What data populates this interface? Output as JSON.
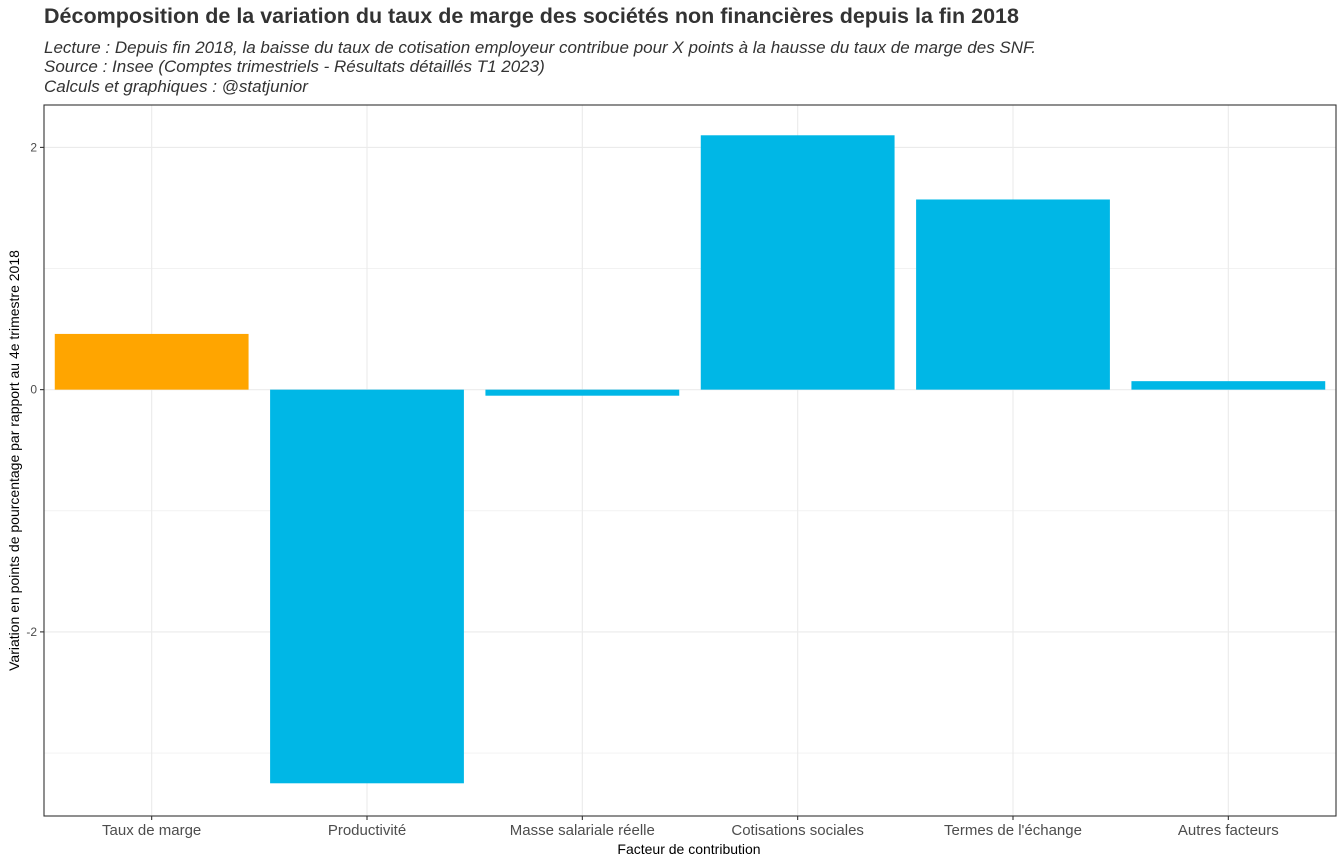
{
  "chart_data": {
    "type": "bar",
    "title": "Décomposition de la variation du taux de marge des sociétés non financières depuis la fin 2018",
    "subtitle_lines": [
      "Lecture : Depuis fin 2018, la baisse du taux de cotisation employeur contribue pour X points à la hausse du taux de marge des SNF.",
      "Source : Insee (Comptes trimestriels - Résultats détaillés T1 2023)",
      "Calculs et graphiques : @statjunior"
    ],
    "xlabel": "Facteur de contribution",
    "ylabel": "Variation en points de pourcentage par rapport au 4e trimestre 2018",
    "categories": [
      "Taux de marge",
      "Productivité",
      "Masse salariale réelle",
      "Cotisations sociales",
      "Termes de l'échange",
      "Autres facteurs"
    ],
    "values": [
      0.46,
      -3.25,
      -0.05,
      2.1,
      1.57,
      0.07
    ],
    "colors": [
      "#FFA500",
      "#00B7E6",
      "#00B7E6",
      "#00B7E6",
      "#00B7E6",
      "#00B7E6"
    ],
    "ylim": [
      -3.52,
      2.35
    ],
    "yticks": [
      2,
      0,
      -2
    ],
    "ytick_labels": [
      "2",
      "0",
      "-2"
    ],
    "grid": true,
    "legend": "none"
  }
}
